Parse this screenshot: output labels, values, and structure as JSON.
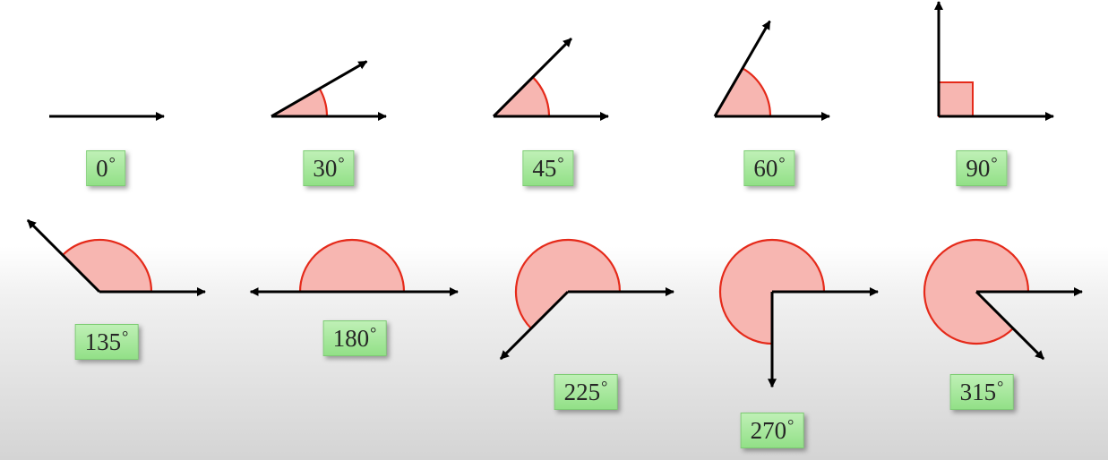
{
  "angles": [
    {
      "label": "0",
      "degrees": 0
    },
    {
      "label": "30",
      "degrees": 30
    },
    {
      "label": "45",
      "degrees": 45
    },
    {
      "label": "60",
      "degrees": 60
    },
    {
      "label": "90",
      "degrees": 90
    },
    {
      "label": "135",
      "degrees": 135
    },
    {
      "label": "180",
      "degrees": 180
    },
    {
      "label": "225",
      "degrees": 225
    },
    {
      "label": "270",
      "degrees": 270
    },
    {
      "label": "315",
      "degrees": 315
    }
  ],
  "degree_symbol": "°",
  "colors": {
    "arrow": "#000000",
    "sector_fill": "#f7b6b1",
    "sector_stroke": "#e52a1a",
    "label_bg": "#a9e79e"
  }
}
